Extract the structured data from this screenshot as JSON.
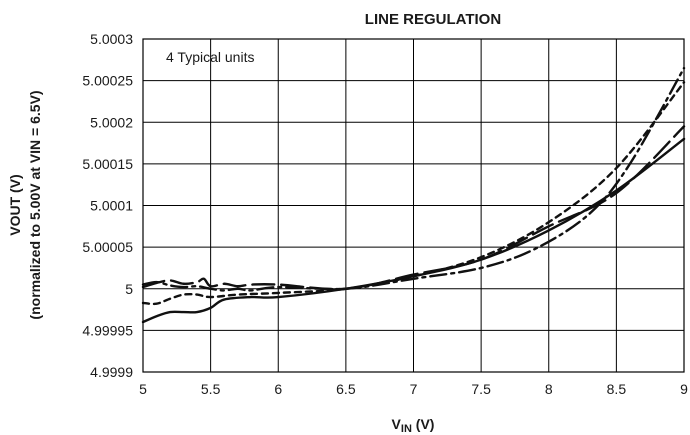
{
  "chart_data": {
    "type": "line",
    "title": "LINE REGULATION",
    "xlabel_main": "V",
    "xlabel_sub": "IN",
    "xlabel_unit": " (V)",
    "ylabel_line1": "VOUT (V)",
    "ylabel_line2": "(normalized to 5.00V at VIN = 6.5V)",
    "annotation": "4 Typical units",
    "xlim": [
      5,
      9
    ],
    "ylim": [
      4.9999,
      5.0003
    ],
    "grid": true,
    "x_ticks": [
      "5",
      "5.5",
      "6",
      "6.5",
      "7",
      "7.5",
      "8",
      "8.5",
      "9"
    ],
    "y_ticks": [
      "4.9999",
      "4.99995",
      "5",
      "5.00005",
      "5.0001",
      "5.00015",
      "5.0002",
      "5.00025",
      "5.0003"
    ],
    "series": [
      {
        "dash": "solid",
        "x": [
          5.0,
          5.1,
          5.2,
          5.3,
          5.4,
          5.5,
          5.6,
          5.8,
          6.0,
          6.5,
          7.0,
          7.5,
          8.0,
          8.5,
          9.0
        ],
        "y": [
          4.99996,
          4.999967,
          4.999972,
          4.999972,
          4.999972,
          4.999977,
          4.999987,
          4.99999,
          4.99999,
          5.0,
          5.000015,
          5.000035,
          5.00007,
          5.000118,
          5.00018
        ]
      },
      {
        "dash": "short-dash",
        "x": [
          5.0,
          5.1,
          5.2,
          5.3,
          5.4,
          5.5,
          5.7,
          6.0,
          6.5,
          7.0,
          7.5,
          8.0,
          8.5,
          9.0
        ],
        "y": [
          4.999983,
          4.999982,
          4.999988,
          4.999993,
          4.999993,
          4.99999,
          4.999993,
          4.999995,
          5.0,
          5.000015,
          5.000038,
          5.00008,
          5.000145,
          5.000248
        ]
      },
      {
        "dash": "long-dash",
        "x": [
          5.0,
          5.1,
          5.2,
          5.3,
          5.4,
          5.45,
          5.5,
          5.6,
          5.7,
          5.8,
          6.0,
          6.5,
          7.0,
          7.5,
          8.0,
          8.5,
          9.0
        ],
        "y": [
          5.000002,
          5.000007,
          5.00001,
          5.000006,
          5.000008,
          5.000012,
          5.000003,
          5.000006,
          5.000003,
          5.000005,
          5.000005,
          5.0,
          5.000017,
          5.000035,
          5.000075,
          5.000115,
          5.000195
        ]
      },
      {
        "dash": "dash-dot",
        "x": [
          5.0,
          5.1,
          5.2,
          5.3,
          5.4,
          5.5,
          5.6,
          5.7,
          5.8,
          6.0,
          6.5,
          7.0,
          7.5,
          7.9,
          8.3,
          8.6,
          9.0
        ],
        "y": [
          5.000005,
          5.000008,
          5.000004,
          5.000002,
          5.000003,
          5.0,
          4.999998,
          5.0,
          4.999998,
          5.000002,
          5.0,
          5.000012,
          5.000025,
          5.000048,
          5.00009,
          5.00015,
          5.000265
        ]
      }
    ]
  }
}
